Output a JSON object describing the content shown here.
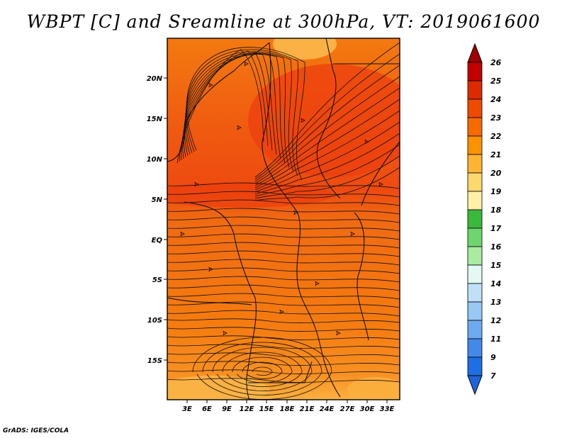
{
  "title": "WBPT [C] and Sreamline at 300hPa, VT: 2019061600",
  "footer": "GrADS: IGES/COLA",
  "map": {
    "lat_labels": [
      "20N",
      "15N",
      "10N",
      "5N",
      "EQ",
      "5S",
      "10S",
      "15S"
    ],
    "lon_labels": [
      "3E",
      "6E",
      "9E",
      "12E",
      "15E",
      "18E",
      "21E",
      "24E",
      "27E",
      "30E",
      "33E"
    ]
  },
  "colorbar": {
    "labels": [
      "26",
      "25",
      "24",
      "23",
      "22",
      "21",
      "20",
      "19",
      "18",
      "17",
      "16",
      "15",
      "14",
      "13",
      "12",
      "11",
      "9",
      "7"
    ],
    "colors": [
      "#c00000",
      "#dc2b00",
      "#ee4a00",
      "#f56b00",
      "#fb9200",
      "#fcb532",
      "#fdd86e",
      "#fff0a8",
      "#3cb83c",
      "#6ed66e",
      "#a8eca0",
      "#e4f8f4",
      "#c0e0f8",
      "#98c8f4",
      "#6eaaef",
      "#4488e8",
      "#1e6ee4"
    ],
    "top_arrow_color": "#a00000",
    "bottom_arrow_color": "#1e64dc"
  }
}
